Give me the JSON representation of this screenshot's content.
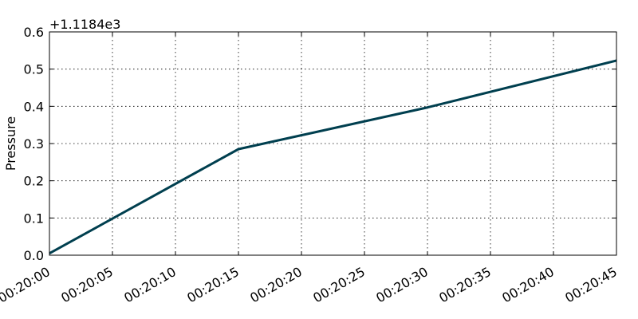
{
  "chart_data": {
    "type": "line",
    "title": "",
    "xlabel": "",
    "ylabel": "Pressure",
    "y_offset_label": "+1.1184e3",
    "x_tick_labels": [
      "00:20:00",
      "00:20:05",
      "00:20:10",
      "00:20:15",
      "00:20:20",
      "00:20:25",
      "00:20:30",
      "00:20:35",
      "00:20:40",
      "00:20:45"
    ],
    "y_tick_labels": [
      "0.0",
      "0.1",
      "0.2",
      "0.3",
      "0.4",
      "0.5",
      "0.6"
    ],
    "xlim": [
      "00:20:00",
      "00:20:45"
    ],
    "ylim": [
      0.0,
      0.6
    ],
    "grid": true,
    "series": [
      {
        "color": "#003f4f",
        "x": [
          "00:20:00",
          "00:20:15",
          "00:20:30",
          "00:20:45"
        ],
        "y": [
          0.005,
          0.285,
          0.397,
          0.523
        ]
      }
    ]
  }
}
